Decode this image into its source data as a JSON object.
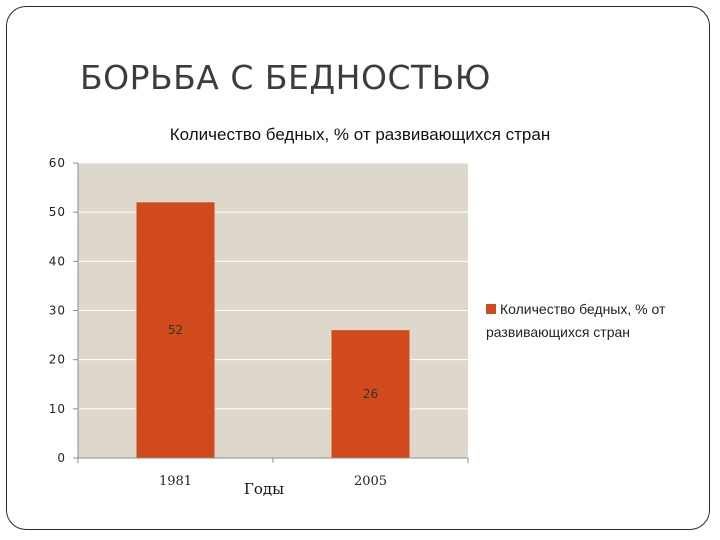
{
  "slide": {
    "title": "БОРЬБА С БЕДНОСТЬЮ"
  },
  "chart_data": {
    "type": "bar",
    "title": "Количество бедных, % от развивающихся стран",
    "categories": [
      "1981",
      "2005"
    ],
    "series": [
      {
        "name": "Количество бедных, % от развивающихся стран",
        "values": [
          52,
          26
        ]
      }
    ],
    "data_labels": [
      "52",
      "26"
    ],
    "xlabel": "Годы",
    "ylabel": "",
    "ylim": [
      0,
      60
    ],
    "yticks": [
      0,
      10,
      20,
      30,
      40,
      50,
      60
    ],
    "grid": true,
    "legend": "right",
    "colors": {
      "bar": "#D04A1C",
      "plot_background": "#DDD8CB",
      "gridline": "#FFFFFF"
    }
  }
}
